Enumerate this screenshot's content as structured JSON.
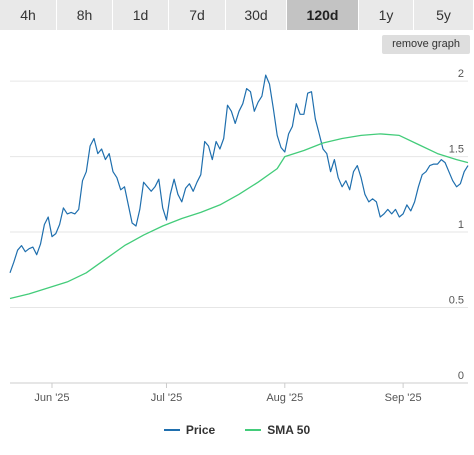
{
  "range_buttons": [
    {
      "label": "4h"
    },
    {
      "label": "8h"
    },
    {
      "label": "1d"
    },
    {
      "label": "7d"
    },
    {
      "label": "30d"
    },
    {
      "label": "120d",
      "active": true
    },
    {
      "label": "1y"
    },
    {
      "label": "5y"
    }
  ],
  "remove_graph_label": "remove graph",
  "colors": {
    "price": "#1f6fae",
    "sma": "#43cc7a",
    "grid": "#e6e6e6",
    "axis": "#cccccc"
  },
  "chart_data": {
    "type": "line",
    "x_start": "2025-05-21",
    "x_end": "2025-09-18",
    "ylim": [
      0,
      2.1
    ],
    "y_ticks": [
      {
        "value": 0,
        "label": "0"
      },
      {
        "value": 0.5,
        "label": "0.5"
      },
      {
        "value": 1,
        "label": "1"
      },
      {
        "value": 1.5,
        "label": "1.5"
      },
      {
        "value": 2,
        "label": "2"
      }
    ],
    "x_ticks": [
      {
        "date": "2025-06-01",
        "label": "Jun '25"
      },
      {
        "date": "2025-07-01",
        "label": "Jul '25"
      },
      {
        "date": "2025-08-01",
        "label": "Aug '25"
      },
      {
        "date": "2025-09-01",
        "label": "Sep '25"
      }
    ],
    "legend_position": "bottom",
    "series": [
      {
        "name": "Price",
        "points": [
          [
            "2025-05-21",
            0.73
          ],
          [
            "2025-05-22",
            0.8
          ],
          [
            "2025-05-23",
            0.88
          ],
          [
            "2025-05-24",
            0.91
          ],
          [
            "2025-05-25",
            0.87
          ],
          [
            "2025-05-26",
            0.89
          ],
          [
            "2025-05-27",
            0.9
          ],
          [
            "2025-05-28",
            0.85
          ],
          [
            "2025-05-29",
            0.92
          ],
          [
            "2025-05-30",
            1.05
          ],
          [
            "2025-05-31",
            1.1
          ],
          [
            "2025-06-01",
            0.97
          ],
          [
            "2025-06-02",
            0.99
          ],
          [
            "2025-06-03",
            1.05
          ],
          [
            "2025-06-04",
            1.16
          ],
          [
            "2025-06-05",
            1.12
          ],
          [
            "2025-06-06",
            1.13
          ],
          [
            "2025-06-07",
            1.12
          ],
          [
            "2025-06-08",
            1.15
          ],
          [
            "2025-06-09",
            1.34
          ],
          [
            "2025-06-10",
            1.4
          ],
          [
            "2025-06-11",
            1.57
          ],
          [
            "2025-06-12",
            1.62
          ],
          [
            "2025-06-13",
            1.52
          ],
          [
            "2025-06-14",
            1.55
          ],
          [
            "2025-06-15",
            1.48
          ],
          [
            "2025-06-16",
            1.52
          ],
          [
            "2025-06-17",
            1.4
          ],
          [
            "2025-06-18",
            1.36
          ],
          [
            "2025-06-19",
            1.28
          ],
          [
            "2025-06-20",
            1.3
          ],
          [
            "2025-06-21",
            1.18
          ],
          [
            "2025-06-22",
            1.06
          ],
          [
            "2025-06-23",
            1.04
          ],
          [
            "2025-06-24",
            1.15
          ],
          [
            "2025-06-25",
            1.33
          ],
          [
            "2025-06-26",
            1.3
          ],
          [
            "2025-06-27",
            1.27
          ],
          [
            "2025-06-28",
            1.3
          ],
          [
            "2025-06-29",
            1.35
          ],
          [
            "2025-06-30",
            1.16
          ],
          [
            "2025-07-01",
            1.08
          ],
          [
            "2025-07-02",
            1.25
          ],
          [
            "2025-07-03",
            1.35
          ],
          [
            "2025-07-04",
            1.25
          ],
          [
            "2025-07-05",
            1.2
          ],
          [
            "2025-07-06",
            1.29
          ],
          [
            "2025-07-07",
            1.32
          ],
          [
            "2025-07-08",
            1.27
          ],
          [
            "2025-07-09",
            1.33
          ],
          [
            "2025-07-10",
            1.38
          ],
          [
            "2025-07-11",
            1.6
          ],
          [
            "2025-07-12",
            1.57
          ],
          [
            "2025-07-13",
            1.48
          ],
          [
            "2025-07-14",
            1.6
          ],
          [
            "2025-07-15",
            1.55
          ],
          [
            "2025-07-16",
            1.62
          ],
          [
            "2025-07-17",
            1.84
          ],
          [
            "2025-07-18",
            1.8
          ],
          [
            "2025-07-19",
            1.72
          ],
          [
            "2025-07-20",
            1.8
          ],
          [
            "2025-07-21",
            1.85
          ],
          [
            "2025-07-22",
            1.95
          ],
          [
            "2025-07-23",
            1.93
          ],
          [
            "2025-07-24",
            1.8
          ],
          [
            "2025-07-25",
            1.86
          ],
          [
            "2025-07-26",
            1.9
          ],
          [
            "2025-07-27",
            2.04
          ],
          [
            "2025-07-28",
            1.98
          ],
          [
            "2025-07-29",
            1.82
          ],
          [
            "2025-07-30",
            1.64
          ],
          [
            "2025-07-31",
            1.56
          ],
          [
            "2025-08-01",
            1.53
          ],
          [
            "2025-08-02",
            1.65
          ],
          [
            "2025-08-03",
            1.7
          ],
          [
            "2025-08-04",
            1.85
          ],
          [
            "2025-08-05",
            1.78
          ],
          [
            "2025-08-06",
            1.78
          ],
          [
            "2025-08-07",
            1.92
          ],
          [
            "2025-08-08",
            1.93
          ],
          [
            "2025-08-09",
            1.75
          ],
          [
            "2025-08-10",
            1.65
          ],
          [
            "2025-08-11",
            1.55
          ],
          [
            "2025-08-12",
            1.52
          ],
          [
            "2025-08-13",
            1.4
          ],
          [
            "2025-08-14",
            1.48
          ],
          [
            "2025-08-15",
            1.36
          ],
          [
            "2025-08-16",
            1.3
          ],
          [
            "2025-08-17",
            1.34
          ],
          [
            "2025-08-18",
            1.28
          ],
          [
            "2025-08-19",
            1.4
          ],
          [
            "2025-08-20",
            1.44
          ],
          [
            "2025-08-21",
            1.36
          ],
          [
            "2025-08-22",
            1.25
          ],
          [
            "2025-08-23",
            1.2
          ],
          [
            "2025-08-24",
            1.22
          ],
          [
            "2025-08-25",
            1.2
          ],
          [
            "2025-08-26",
            1.1
          ],
          [
            "2025-08-27",
            1.12
          ],
          [
            "2025-08-28",
            1.15
          ],
          [
            "2025-08-29",
            1.12
          ],
          [
            "2025-08-30",
            1.15
          ],
          [
            "2025-08-31",
            1.1
          ],
          [
            "2025-09-01",
            1.12
          ],
          [
            "2025-09-02",
            1.18
          ],
          [
            "2025-09-03",
            1.14
          ],
          [
            "2025-09-04",
            1.2
          ],
          [
            "2025-09-05",
            1.3
          ],
          [
            "2025-09-06",
            1.38
          ],
          [
            "2025-09-07",
            1.4
          ],
          [
            "2025-09-08",
            1.44
          ],
          [
            "2025-09-09",
            1.45
          ],
          [
            "2025-09-10",
            1.45
          ],
          [
            "2025-09-11",
            1.48
          ],
          [
            "2025-09-12",
            1.46
          ],
          [
            "2025-09-13",
            1.4
          ],
          [
            "2025-09-14",
            1.34
          ],
          [
            "2025-09-15",
            1.3
          ],
          [
            "2025-09-16",
            1.32
          ],
          [
            "2025-09-17",
            1.4
          ],
          [
            "2025-09-18",
            1.44
          ]
        ]
      },
      {
        "name": "SMA 50",
        "points": [
          [
            "2025-05-21",
            0.56
          ],
          [
            "2025-05-26",
            0.59
          ],
          [
            "2025-05-31",
            0.63
          ],
          [
            "2025-06-05",
            0.67
          ],
          [
            "2025-06-10",
            0.73
          ],
          [
            "2025-06-15",
            0.82
          ],
          [
            "2025-06-20",
            0.91
          ],
          [
            "2025-06-25",
            0.98
          ],
          [
            "2025-06-30",
            1.04
          ],
          [
            "2025-07-05",
            1.09
          ],
          [
            "2025-07-10",
            1.13
          ],
          [
            "2025-07-15",
            1.18
          ],
          [
            "2025-07-20",
            1.25
          ],
          [
            "2025-07-25",
            1.33
          ],
          [
            "2025-07-30",
            1.42
          ],
          [
            "2025-08-01",
            1.5
          ],
          [
            "2025-08-06",
            1.54
          ],
          [
            "2025-08-11",
            1.59
          ],
          [
            "2025-08-16",
            1.62
          ],
          [
            "2025-08-21",
            1.64
          ],
          [
            "2025-08-26",
            1.65
          ],
          [
            "2025-08-31",
            1.64
          ],
          [
            "2025-09-05",
            1.58
          ],
          [
            "2025-09-10",
            1.52
          ],
          [
            "2025-09-15",
            1.48
          ],
          [
            "2025-09-18",
            1.46
          ]
        ]
      }
    ]
  },
  "legend": [
    {
      "label": "Price",
      "color": "#1f6fae"
    },
    {
      "label": "SMA 50",
      "color": "#43cc7a"
    }
  ]
}
